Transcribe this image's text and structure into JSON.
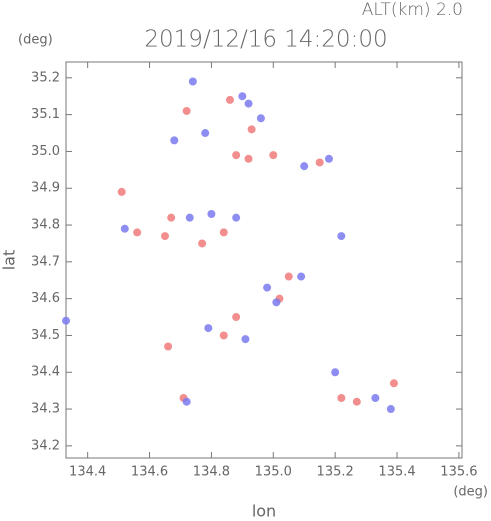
{
  "chart_data": {
    "type": "scatter",
    "title": "2019/12/16 14:20:00",
    "subtitle": "ALT(km) 2.0",
    "x_label": "lon",
    "y_label": "lat",
    "x_unit": "(deg)",
    "y_unit": "(deg)",
    "xlim": [
      134.33,
      135.61
    ],
    "ylim": [
      34.167,
      35.243
    ],
    "xticks": [
      134.4,
      134.6,
      134.8,
      {
        "value": 135.0,
        "label": "135.0"
      },
      135.2,
      135.4,
      135.6
    ],
    "yticks": [
      34.2,
      34.3,
      34.4,
      34.5,
      34.6,
      34.7,
      34.8,
      34.9,
      {
        "value": 35.0,
        "label": "35.0"
      },
      35.1,
      35.2
    ],
    "series": [
      {
        "color": "#f07a7a",
        "marker_size": 4,
        "x": [
          134.72,
          134.86,
          134.88,
          134.92,
          134.56,
          134.65,
          134.77,
          134.84,
          134.51,
          134.66,
          134.71,
          134.84,
          134.88,
          135.02,
          135.05,
          135.22,
          135.27,
          135.39,
          135.15,
          135.0,
          134.67,
          134.93
        ],
        "y": [
          35.11,
          35.14,
          34.99,
          34.98,
          34.78,
          34.77,
          34.75,
          34.78,
          34.89,
          34.47,
          34.33,
          34.5,
          34.55,
          34.6,
          34.66,
          34.33,
          34.32,
          34.37,
          34.97,
          34.99,
          34.82,
          35.06
        ]
      },
      {
        "color": "#7a7af0",
        "marker_size": 4,
        "x": [
          134.74,
          134.9,
          134.92,
          134.96,
          134.68,
          134.78,
          134.52,
          134.73,
          134.8,
          134.88,
          134.33,
          134.79,
          134.91,
          134.98,
          135.01,
          135.09,
          135.2,
          135.33,
          135.38,
          135.1,
          135.18,
          135.22,
          134.72
        ],
        "y": [
          35.19,
          35.15,
          35.13,
          35.09,
          35.03,
          35.05,
          34.79,
          34.82,
          34.83,
          34.82,
          34.54,
          34.52,
          34.49,
          34.63,
          34.59,
          34.66,
          34.4,
          34.33,
          34.3,
          34.96,
          34.98,
          34.77,
          34.32
        ]
      }
    ]
  }
}
